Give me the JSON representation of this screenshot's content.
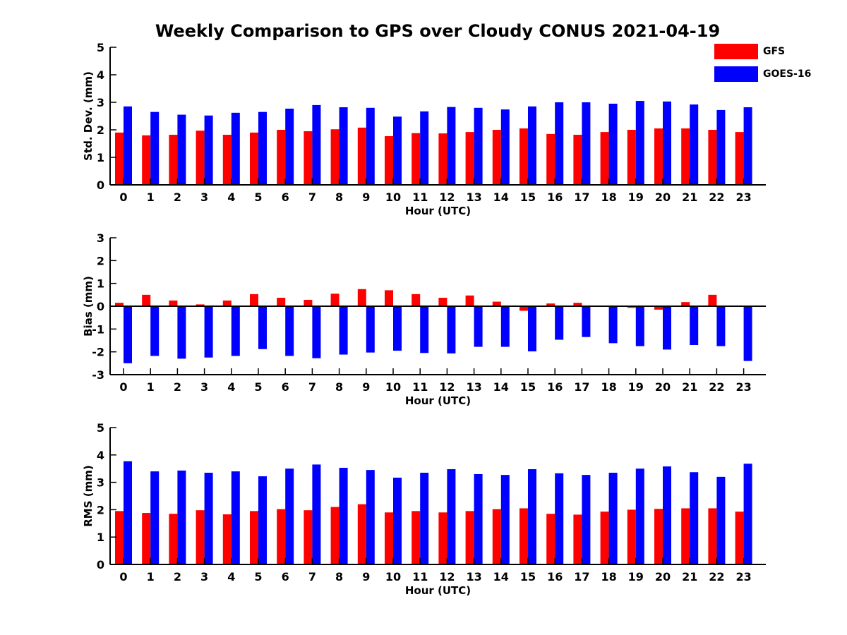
{
  "title": "Weekly Comparison to GPS over Cloudy CONUS 2021-04-19",
  "colors": {
    "GFS": "#ff0000",
    "GOES-16": "#0000ff",
    "axis": "#000000"
  },
  "legend": [
    {
      "name": "GFS",
      "color": "#ff0000"
    },
    {
      "name": "GOES-16",
      "color": "#0000ff"
    }
  ],
  "chart_data": [
    {
      "type": "bar",
      "xlabel": "Hour (UTC)",
      "ylabel": "Std. Dev. (mm)",
      "ylim": [
        0,
        5
      ],
      "yticks": [
        0,
        1,
        2,
        3,
        4,
        5
      ],
      "categories": [
        "0",
        "1",
        "2",
        "3",
        "4",
        "5",
        "6",
        "7",
        "8",
        "9",
        "10",
        "11",
        "12",
        "13",
        "14",
        "15",
        "16",
        "17",
        "18",
        "19",
        "20",
        "21",
        "22",
        "23"
      ],
      "series": [
        {
          "name": "GFS",
          "values": [
            1.9,
            1.8,
            1.82,
            1.97,
            1.82,
            1.9,
            2.0,
            1.95,
            2.02,
            2.08,
            1.77,
            1.88,
            1.87,
            1.92,
            2.0,
            2.05,
            1.85,
            1.82,
            1.92,
            2.0,
            2.05,
            2.05,
            2.0,
            1.92
          ]
        },
        {
          "name": "GOES-16",
          "values": [
            2.85,
            2.65,
            2.55,
            2.52,
            2.62,
            2.65,
            2.77,
            2.9,
            2.82,
            2.8,
            2.48,
            2.67,
            2.83,
            2.8,
            2.74,
            2.85,
            3.0,
            3.0,
            2.95,
            3.05,
            3.03,
            2.92,
            2.72,
            2.82
          ]
        }
      ]
    },
    {
      "type": "bar",
      "xlabel": "Hour (UTC)",
      "ylabel": "Bias (mm)",
      "ylim": [
        -3,
        3
      ],
      "yticks": [
        -3,
        -2,
        -1,
        0,
        1,
        2,
        3
      ],
      "categories": [
        "0",
        "1",
        "2",
        "3",
        "4",
        "5",
        "6",
        "7",
        "8",
        "9",
        "10",
        "11",
        "12",
        "13",
        "14",
        "15",
        "16",
        "17",
        "18",
        "19",
        "20",
        "21",
        "22",
        "23"
      ],
      "series": [
        {
          "name": "GFS",
          "values": [
            0.15,
            0.5,
            0.25,
            0.08,
            0.25,
            0.53,
            0.37,
            0.28,
            0.55,
            0.75,
            0.7,
            0.53,
            0.37,
            0.47,
            0.2,
            -0.2,
            0.12,
            0.15,
            0.0,
            -0.07,
            -0.15,
            0.18,
            0.5,
            0.03
          ]
        },
        {
          "name": "GOES-16",
          "values": [
            -2.5,
            -2.18,
            -2.3,
            -2.25,
            -2.18,
            -1.88,
            -2.18,
            -2.28,
            -2.12,
            -2.03,
            -1.95,
            -2.05,
            -2.07,
            -1.78,
            -1.78,
            -1.98,
            -1.47,
            -1.35,
            -1.62,
            -1.75,
            -1.9,
            -1.7,
            -1.75,
            -2.4
          ]
        }
      ]
    },
    {
      "type": "bar",
      "xlabel": "Hour (UTC)",
      "ylabel": "RMS (mm)",
      "ylim": [
        0,
        5
      ],
      "yticks": [
        0,
        1,
        2,
        3,
        4,
        5
      ],
      "categories": [
        "0",
        "1",
        "2",
        "3",
        "4",
        "5",
        "6",
        "7",
        "8",
        "9",
        "10",
        "11",
        "12",
        "13",
        "14",
        "15",
        "16",
        "17",
        "18",
        "19",
        "20",
        "21",
        "22",
        "23"
      ],
      "series": [
        {
          "name": "GFS",
          "values": [
            1.95,
            1.88,
            1.85,
            1.98,
            1.83,
            1.95,
            2.02,
            1.98,
            2.1,
            2.2,
            1.9,
            1.95,
            1.9,
            1.95,
            2.02,
            2.05,
            1.85,
            1.82,
            1.93,
            2.0,
            2.03,
            2.05,
            2.05,
            1.93
          ]
        },
        {
          "name": "GOES-16",
          "values": [
            3.77,
            3.4,
            3.43,
            3.35,
            3.4,
            3.22,
            3.5,
            3.65,
            3.53,
            3.45,
            3.17,
            3.35,
            3.48,
            3.3,
            3.27,
            3.48,
            3.33,
            3.27,
            3.35,
            3.5,
            3.58,
            3.37,
            3.2,
            3.68
          ]
        }
      ]
    }
  ]
}
